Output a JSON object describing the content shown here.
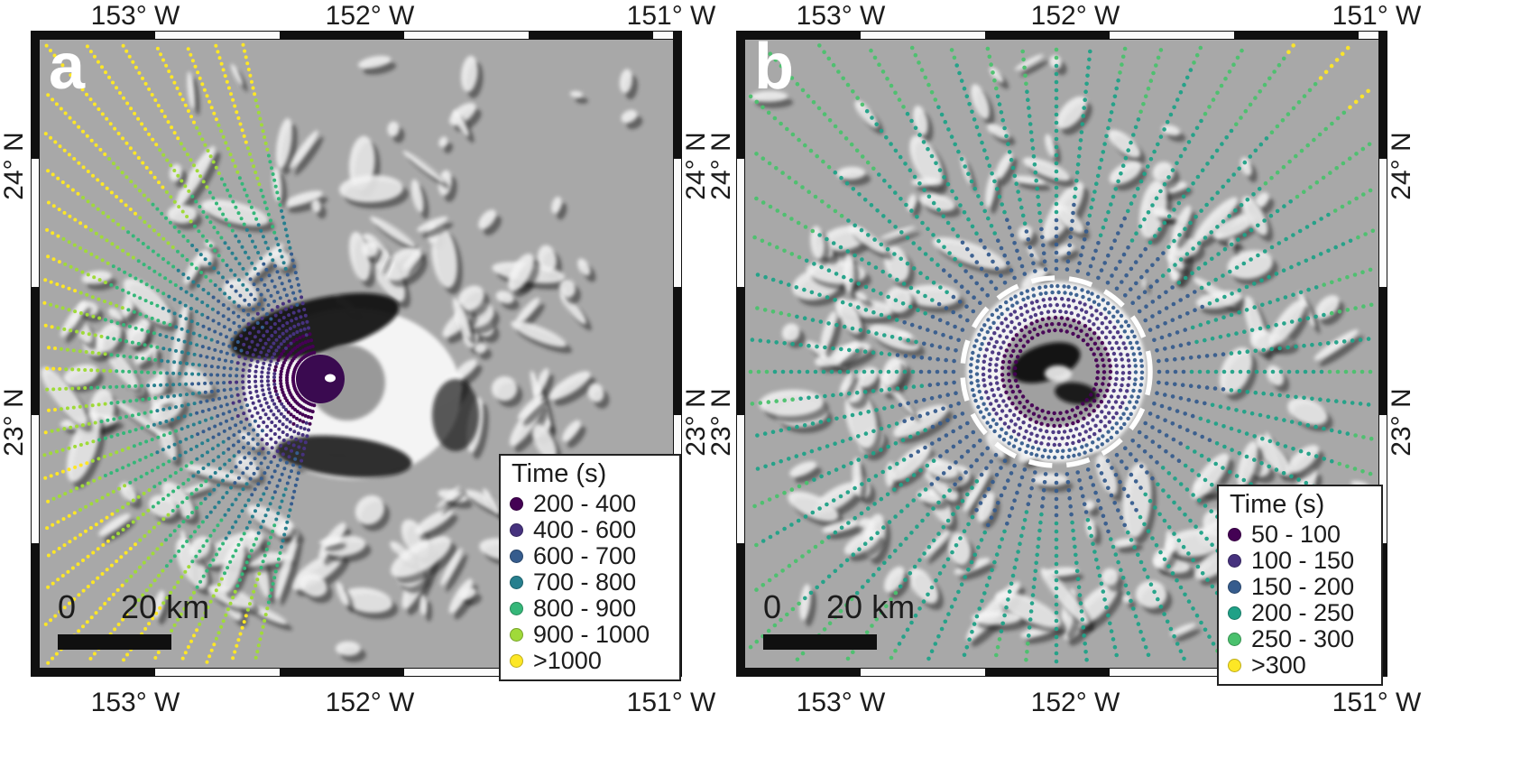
{
  "figure": {
    "colors": {
      "map_background": "#a8a8a8",
      "frame": "#101010",
      "dashed_circle": "#ffffff",
      "origin_disc": "#3a0a50",
      "text": "#1c1c1c"
    },
    "panels": [
      {
        "letter": "a",
        "axis": {
          "top": [
            "153° W",
            "152° W",
            "151° W"
          ],
          "bottom": [
            "153° W",
            "152° W",
            "151° W"
          ],
          "left": [
            "24° N",
            "23° N"
          ],
          "right": [
            "24° N",
            "23° N"
          ]
        },
        "scalebar": {
          "zero": "0",
          "distance": "20 km"
        },
        "legend": {
          "title": "Time (s)",
          "entries": [
            {
              "label": "200 - 400",
              "color": "#440154"
            },
            {
              "label": "400 - 600",
              "color": "#46327e"
            },
            {
              "label": "600 - 700",
              "color": "#365c8d"
            },
            {
              "label": "700 - 800",
              "color": "#277f8e"
            },
            {
              "label": "800 - 900",
              "color": "#35b779"
            },
            {
              "label": "900 - 1000",
              "color": "#a0da39"
            },
            {
              "label": ">1000",
              "color": "#fde725"
            }
          ]
        }
      },
      {
        "letter": "b",
        "axis": {
          "top": [
            "153° W",
            "152° W",
            "151° W"
          ],
          "bottom": [
            "153° W",
            "152° W",
            "151° W"
          ],
          "left": [
            "24° N",
            "23° N"
          ],
          "right": [
            "24° N",
            "23° N"
          ]
        },
        "scalebar": {
          "zero": "0",
          "distance": "20 km"
        },
        "legend": {
          "title": "Time (s)",
          "entries": [
            {
              "label": "50 - 100",
              "color": "#440154"
            },
            {
              "label": "100 - 150",
              "color": "#46327e"
            },
            {
              "label": "150 - 200",
              "color": "#365c8d"
            },
            {
              "label": "200 - 250",
              "color": "#1fa187"
            },
            {
              "label": "250 - 300",
              "color": "#4ac16d"
            },
            {
              "label": ">300",
              "color": "#fde725"
            }
          ]
        }
      }
    ]
  }
}
